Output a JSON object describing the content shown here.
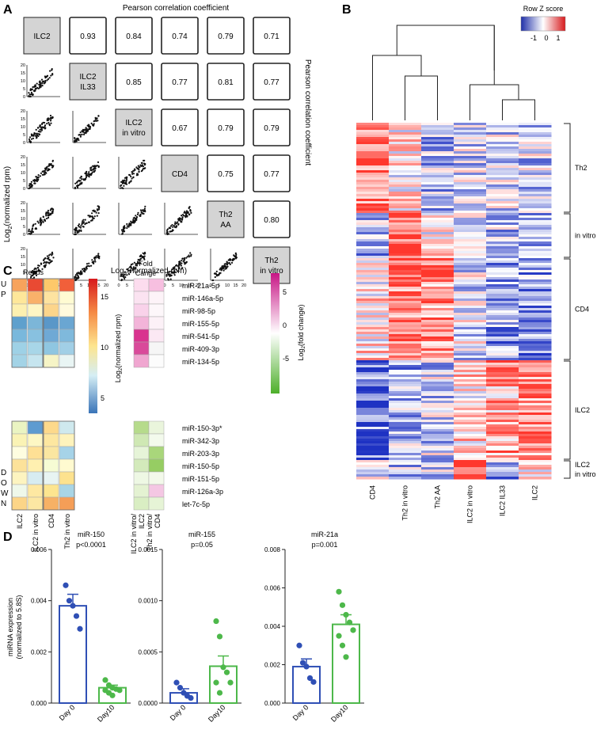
{
  "panel_labels": {
    "a": "A",
    "b": "B",
    "c": "C",
    "d": "D"
  },
  "colors": {
    "blue": "#2f4fb5",
    "green": "#4db84a",
    "red": "#d7191c",
    "white": "#ffffff",
    "cell_gray": "#d4d4d4"
  },
  "panel_a": {
    "title": "Pearson correlation coefficient",
    "right_title": "Pearson correlation coefficient",
    "xlabel_prefix": "Log",
    "xlabel_sub": "2",
    "xlabel_suffix": "(normalized rpm)",
    "ylabel_prefix": "Log",
    "ylabel_sub": "2",
    "ylabel_suffix": "(normalized rpm)",
    "diagonal": [
      {
        "line1": "ILC2",
        "line2": ""
      },
      {
        "line1": "ILC2",
        "line2": "IL33"
      },
      {
        "line1": "ILC2",
        "line2": "in vitro"
      },
      {
        "line1": "CD4",
        "line2": ""
      },
      {
        "line1": "Th2",
        "line2": "AA"
      },
      {
        "line1": "Th2",
        "line2": "in vitro"
      }
    ],
    "coefficients": {
      "r0": [
        "0.93",
        "0.84",
        "0.74",
        "0.79",
        "0.71"
      ],
      "r1": [
        "0.85",
        "0.77",
        "0.81",
        "0.77"
      ],
      "r2": [
        "0.67",
        "0.79",
        "0.79"
      ],
      "r3": [
        "0.75",
        "0.77"
      ],
      "r4": [
        "0.80"
      ]
    },
    "scatter_y_ticks": [
      "0",
      "5",
      "10",
      "15",
      "20"
    ],
    "scatter_x_ticks": [
      "0",
      "5",
      "10",
      "15",
      "20"
    ]
  },
  "panel_b": {
    "legend_title": "Row Z score",
    "legend_ticks": [
      "-1",
      "0",
      "1"
    ],
    "columns": [
      "CD4",
      "Th2 in vitro",
      "Th2 AA",
      "ILC2 in vitro",
      "ILC2 IL33",
      "ILC2"
    ],
    "clusters": [
      "Th2",
      "in vitro",
      "CD4",
      "ILC2",
      "ILC2\nin vitro"
    ]
  },
  "panel_c": {
    "reads_title": "Reads",
    "fold_title_l1": "Fold",
    "fold_title_l2": "Cange",
    "up_label": [
      "U",
      "P"
    ],
    "down_label": [
      "D",
      "O",
      "W",
      "N"
    ],
    "reads_columns": [
      "ILC2",
      "ILC2 in vitro",
      "CD4",
      "Th2 in vitro"
    ],
    "fold_columns": [
      "ILC2 in vitro/",
      "ILC2",
      "Th2 in vitro/",
      "CD4"
    ],
    "legend1_prefix": "Log",
    "legend1_sub": "2",
    "legend1_suffix": "(normalized rpm)",
    "legend1_ticks": [
      "15",
      "10",
      "5"
    ],
    "legend2_prefix": "Log",
    "legend2_sub": "2",
    "legend2_suffix": "(fold change)",
    "legend2_ticks": [
      "5",
      "0",
      "-5"
    ],
    "up_mirnas": [
      "miR-21a-5p",
      "miR-146a-5p",
      "miR-98-5p",
      "miR-155-5p",
      "miR-541-5p",
      "miR-409-3p",
      "miR-134-5p"
    ],
    "down_mirnas": [
      "miR-150-3p*",
      "miR-342-3p",
      "miR-203-3p",
      "miR-150-5p",
      "miR-151-5p",
      "miR-126a-3p",
      "let-7c-5p"
    ]
  },
  "chart_data": [
    {
      "type": "bar",
      "title": "miR-150",
      "subtitle": "p<0.0001",
      "ylabel": "miRNA expression (normalized to 5.8S)",
      "categories": [
        "Day 0",
        "Day10"
      ],
      "values": [
        0.0038,
        0.0006
      ],
      "errors": [
        0.00045,
        0.0001
      ],
      "points": [
        [
          0.0046,
          0.004,
          0.0038,
          0.0034,
          0.0029
        ],
        [
          0.0009,
          0.0007,
          0.0006,
          0.00055,
          0.0005,
          0.0005,
          0.0004,
          0.0003
        ]
      ],
      "ylim": [
        0,
        0.006
      ],
      "yticks": [
        "0.000",
        "0.002",
        "0.004",
        "0.006"
      ]
    },
    {
      "type": "bar",
      "title": "miR-155",
      "subtitle": "p=0.05",
      "ylabel": "",
      "categories": [
        "Day 0",
        "Day10"
      ],
      "values": [
        0.0001,
        0.00036
      ],
      "errors": [
        4e-05,
        0.0001
      ],
      "points": [
        [
          0.0002,
          0.00015,
          0.0001,
          7e-05,
          5e-05
        ],
        [
          0.0008,
          0.00065,
          0.00035,
          0.0003,
          0.0002,
          0.0002,
          0.0001
        ]
      ],
      "ylim": [
        0,
        0.0015
      ],
      "yticks": [
        "0.0000",
        "0.0005",
        "0.0010",
        "0.0015"
      ]
    },
    {
      "type": "bar",
      "title": "miR-21a",
      "subtitle": "p=0.001",
      "ylabel": "",
      "categories": [
        "Day 0",
        "Day10"
      ],
      "values": [
        0.0019,
        0.0041
      ],
      "errors": [
        0.0004,
        0.0005
      ],
      "points": [
        [
          0.003,
          0.0021,
          0.0019,
          0.0013,
          0.0011
        ],
        [
          0.0058,
          0.0051,
          0.0046,
          0.0042,
          0.0038,
          0.0035,
          0.003,
          0.0024
        ]
      ],
      "ylim": [
        0,
        0.008
      ],
      "yticks": [
        "0.000",
        "0.002",
        "0.004",
        "0.006",
        "0.008"
      ]
    }
  ]
}
